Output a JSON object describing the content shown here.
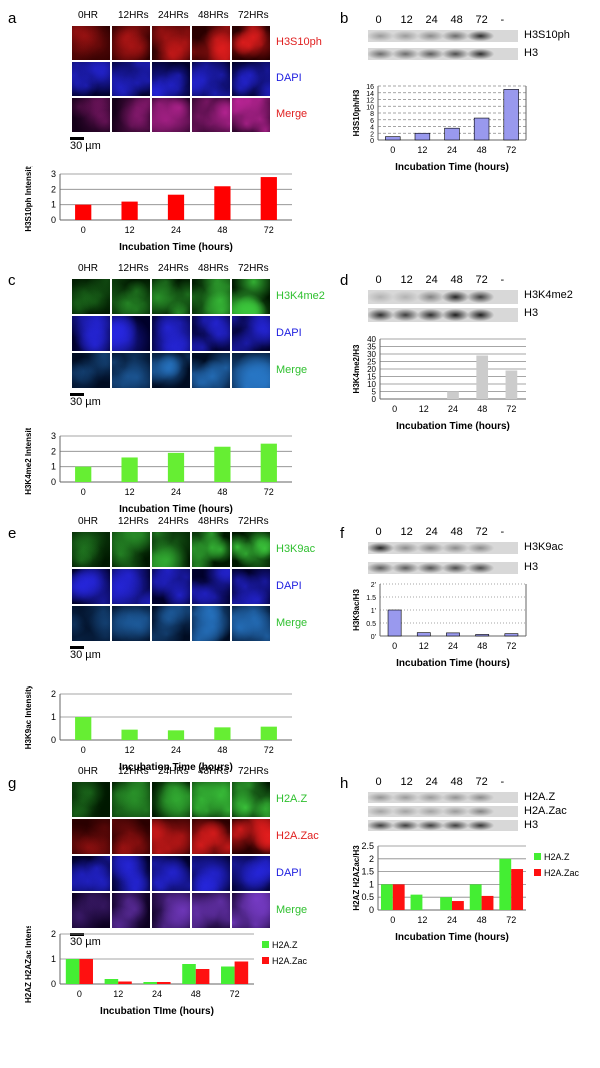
{
  "panels": [
    {
      "id": "a",
      "letter": "a",
      "times": [
        "0HR",
        "12HRs",
        "24HRs",
        "48HRs",
        "72HRs"
      ],
      "rows": [
        {
          "label": "H3S10ph",
          "color": "#e02020",
          "kind": "red"
        },
        {
          "label": "DAPI",
          "color": "#2020e0",
          "kind": "blue"
        },
        {
          "label": "Merge",
          "color": "#e02020",
          "kind": "merge-red",
          "label2": "Merge"
        }
      ],
      "scale": "30 µm"
    },
    {
      "id": "c",
      "letter": "c",
      "times": [
        "0HR",
        "12HRs",
        "24HRs",
        "48HRs",
        "72HRs"
      ],
      "rows": [
        {
          "label": "H3K4me2",
          "color": "#30c030",
          "kind": "green"
        },
        {
          "label": "DAPI",
          "color": "#2020e0",
          "kind": "blue"
        },
        {
          "label": "Merge",
          "color": "#30c030",
          "kind": "merge-green"
        }
      ],
      "scale": "30 µm"
    },
    {
      "id": "e",
      "letter": "e",
      "times": [
        "0HR",
        "12HRs",
        "24HRs",
        "48HRs",
        "72HRs"
      ],
      "rows": [
        {
          "label": "H3K9ac",
          "color": "#30c030",
          "kind": "green"
        },
        {
          "label": "DAPI",
          "color": "#2020e0",
          "kind": "blue"
        },
        {
          "label": "Merge",
          "color": "#30c030",
          "kind": "merge-green"
        }
      ],
      "scale": "30 µm"
    },
    {
      "id": "g",
      "letter": "g",
      "times": [
        "0HR",
        "12HRs",
        "24HRs",
        "48HRs",
        "72HRs"
      ],
      "rows": [
        {
          "label": "H2A.Z",
          "color": "#30c030",
          "kind": "green"
        },
        {
          "label": "H2A.Zac",
          "color": "#e02020",
          "kind": "red"
        },
        {
          "label": "DAPI",
          "color": "#2020e0",
          "kind": "blue"
        },
        {
          "label": "Merge",
          "color": "#30c030",
          "kind": "merge-both"
        }
      ],
      "scale": "30 µm"
    }
  ],
  "blots": [
    {
      "id": "b",
      "letter": "b",
      "lanes": [
        "0",
        "12",
        "24",
        "48",
        "72",
        "-"
      ],
      "bands": [
        "H3S10ph",
        "H3"
      ]
    },
    {
      "id": "d",
      "letter": "d",
      "lanes": [
        "0",
        "12",
        "24",
        "48",
        "72",
        "-"
      ],
      "bands": [
        "H3K4me2",
        "H3"
      ]
    },
    {
      "id": "f",
      "letter": "f",
      "lanes": [
        "0",
        "12",
        "24",
        "48",
        "72",
        "-"
      ],
      "bands": [
        "H3K9ac",
        "H3"
      ]
    },
    {
      "id": "h",
      "letter": "h",
      "lanes": [
        "0",
        "12",
        "24",
        "48",
        "72",
        "-"
      ],
      "bands": [
        "H2A.Z",
        "H2A.Zac",
        "H3"
      ]
    }
  ],
  "chart_data": [
    {
      "id": "a-chart",
      "type": "bar",
      "categories": [
        "0",
        "12",
        "24",
        "48",
        "72"
      ],
      "series": [
        {
          "values": [
            1.0,
            1.2,
            1.65,
            2.2,
            2.8
          ],
          "color": "#ff0000"
        }
      ],
      "xlabel": "Incubation Time (hours)",
      "ylabel": "H3S10ph Intensity",
      "ylim": [
        0,
        3
      ],
      "yticks": [
        0,
        1,
        2,
        3
      ],
      "grid": true
    },
    {
      "id": "b-chart",
      "type": "bar",
      "categories": [
        "0",
        "12",
        "24",
        "48",
        "72"
      ],
      "series": [
        {
          "values": [
            1.0,
            2.0,
            3.5,
            6.5,
            15.0
          ],
          "color": "#9999ee"
        }
      ],
      "xlabel": "Incubation Time (hours)",
      "ylabel": "H3S10ph/H3",
      "ylim": [
        0,
        16
      ],
      "yticks": [
        0,
        2,
        4,
        6,
        8,
        10,
        12,
        14,
        16
      ],
      "grid": true
    },
    {
      "id": "c-chart",
      "type": "bar",
      "categories": [
        "0",
        "12",
        "24",
        "48",
        "72"
      ],
      "series": [
        {
          "values": [
            1.0,
            1.6,
            1.9,
            2.3,
            2.5
          ],
          "color": "#66ee33"
        }
      ],
      "xlabel": "Incubation Time (hours)",
      "ylabel": "H3K4me2 Intensity",
      "ylim": [
        0,
        3
      ],
      "yticks": [
        0,
        1,
        2,
        3
      ],
      "grid": true
    },
    {
      "id": "d-chart",
      "type": "bar",
      "categories": [
        "0",
        "12",
        "24",
        "48",
        "72"
      ],
      "series": [
        {
          "values": [
            0,
            0,
            5,
            29,
            19
          ],
          "color": "#cccccc"
        }
      ],
      "xlabel": "Incubation Time (hours)",
      "ylabel": "H3K4me2/H3",
      "ylim": [
        0,
        40
      ],
      "yticks": [
        0,
        5,
        10,
        15,
        20,
        25,
        30,
        35,
        40
      ],
      "grid": true
    },
    {
      "id": "e-chart",
      "type": "bar",
      "categories": [
        "0",
        "12",
        "24",
        "48",
        "72"
      ],
      "series": [
        {
          "values": [
            1.0,
            0.45,
            0.42,
            0.55,
            0.58
          ],
          "color": "#66ee33"
        }
      ],
      "xlabel": "Incubation Time (hours)",
      "ylabel": "H3K9ac Intensity",
      "ylim": [
        0,
        2
      ],
      "yticks": [
        0,
        1,
        2
      ],
      "grid": true
    },
    {
      "id": "f-chart",
      "type": "bar",
      "categories": [
        "0",
        "12",
        "24",
        "48",
        "72"
      ],
      "series": [
        {
          "values": [
            1.0,
            0.13,
            0.12,
            0.06,
            0.09
          ],
          "color": "#9999ee"
        }
      ],
      "xlabel": "Incubation Time (hours)",
      "ylabel": "H3K9ac/H3",
      "ylim": [
        0,
        2
      ],
      "yticks": [
        0,
        0.5,
        1,
        1.5,
        2
      ],
      "yticklabels": [
        "0'",
        "0.5",
        "1'",
        "1.5",
        "2'"
      ],
      "grid": true
    },
    {
      "id": "g-chart",
      "type": "bar",
      "categories": [
        "0",
        "12",
        "24",
        "48",
        "72"
      ],
      "series": [
        {
          "name": "H2A.Z",
          "values": [
            1.0,
            0.2,
            0.08,
            0.8,
            0.7
          ],
          "color": "#44ee33"
        },
        {
          "name": "H2A.Zac",
          "values": [
            1.0,
            0.1,
            0.08,
            0.6,
            0.9
          ],
          "color": "#ff1010"
        }
      ],
      "xlabel": "Incubation TIme (hours)",
      "ylabel": "H2AZ H2AZac Intensity",
      "ylim": [
        0,
        2
      ],
      "yticks": [
        0,
        1,
        2
      ],
      "grid": true,
      "legend": "right"
    },
    {
      "id": "h-chart",
      "type": "bar",
      "categories": [
        "0",
        "12",
        "24",
        "48",
        "72"
      ],
      "series": [
        {
          "name": "H2A.Z",
          "values": [
            1.0,
            0.6,
            0.5,
            1.0,
            2.0
          ],
          "color": "#44ee33"
        },
        {
          "name": "H2A.Zac",
          "values": [
            1.0,
            0,
            0.35,
            0.55,
            1.6
          ],
          "color": "#ff1010"
        }
      ],
      "xlabel": "Incubation Time (hours)",
      "ylabel": "H2AZ H2AZac/H3",
      "ylim": [
        0,
        2.5
      ],
      "yticks": [
        0,
        0.5,
        1,
        1.5,
        2,
        2.5
      ],
      "grid": true,
      "legend": "right"
    }
  ]
}
